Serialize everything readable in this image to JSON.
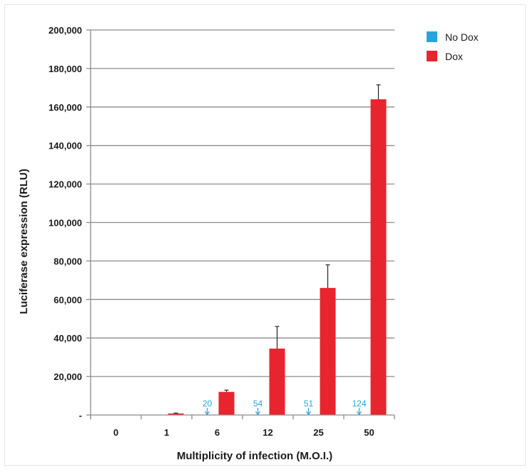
{
  "chart_data": {
    "type": "bar",
    "xlabel": "Multiplicity of infection (M.O.I.)",
    "ylabel": "Luciferase expression (RLU)",
    "categories": [
      "0",
      "1",
      "6",
      "12",
      "25",
      "50"
    ],
    "ylim": [
      0,
      200000
    ],
    "yticks": [
      0,
      20000,
      40000,
      60000,
      80000,
      100000,
      120000,
      140000,
      160000,
      180000,
      200000
    ],
    "ytick_labels": [
      "-",
      "20,000",
      "40,000",
      "60,000",
      "80,000",
      "100,000",
      "120,000",
      "140,000",
      "160,000",
      "180,000",
      "200,000"
    ],
    "grid": true,
    "legend_position": "top-right",
    "series": [
      {
        "name": "No Dox",
        "color": "#29a3dc",
        "values": [
          0,
          0,
          20,
          54,
          51,
          124
        ],
        "labels": [
          "",
          "",
          "20",
          "54",
          "51",
          "124"
        ]
      },
      {
        "name": "Dox",
        "color": "#e8252e",
        "values": [
          0,
          800,
          12000,
          34500,
          66000,
          164000
        ],
        "errors": [
          0,
          200,
          900,
          11500,
          12000,
          7500
        ]
      }
    ]
  }
}
